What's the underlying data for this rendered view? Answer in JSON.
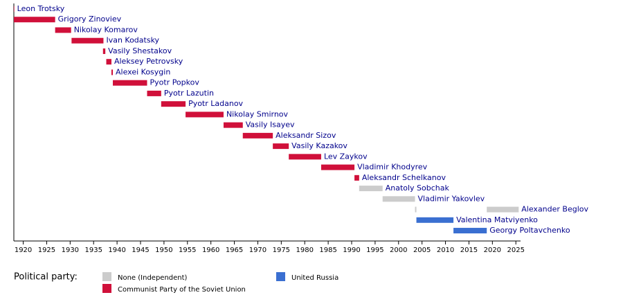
{
  "chart_data": {
    "type": "timeline",
    "xlim": [
      1918,
      2026
    ],
    "xticks": [
      1920,
      1925,
      1930,
      1935,
      1940,
      1945,
      1950,
      1955,
      1960,
      1965,
      1970,
      1975,
      1980,
      1985,
      1990,
      1995,
      2000,
      2005,
      2010,
      2015,
      2020,
      2025
    ],
    "legend_title": "Political party:",
    "parties": [
      {
        "name": "None (Independent)",
        "color": "#cccccc"
      },
      {
        "name": "Communist Party of the Soviet Union",
        "color": "#d0103a"
      },
      {
        "name": "United Russia",
        "color": "#3a6fd1"
      }
    ],
    "rows": [
      {
        "name": "Leon Trotsky",
        "color": "#d0103a",
        "spans": [
          [
            1918,
            1918.1
          ]
        ]
      },
      {
        "name": "Grigory Zinoviev",
        "color": "#d0103a",
        "spans": [
          [
            1918,
            1926.8
          ]
        ]
      },
      {
        "name": "Nikolay Komarov",
        "color": "#d0103a",
        "spans": [
          [
            1926.8,
            1930.2
          ]
        ]
      },
      {
        "name": "Ivan Kodatsky",
        "color": "#d0103a",
        "spans": [
          [
            1930.3,
            1937.1
          ]
        ]
      },
      {
        "name": "Vasily Shestakov",
        "color": "#d0103a",
        "spans": [
          [
            1937,
            1937.5
          ]
        ]
      },
      {
        "name": "Aleksey Petrovsky",
        "color": "#d0103a",
        "spans": [
          [
            1937.7,
            1938.8
          ]
        ]
      },
      {
        "name": "Alexei Kosygin",
        "color": "#d0103a",
        "spans": [
          [
            1938.8,
            1939.1
          ]
        ]
      },
      {
        "name": "Pyotr Popkov",
        "color": "#d0103a",
        "spans": [
          [
            1939.1,
            1946.4
          ]
        ]
      },
      {
        "name": "Pyotr Lazutin",
        "color": "#d0103a",
        "spans": [
          [
            1946.4,
            1949.4
          ]
        ]
      },
      {
        "name": "Pyotr Ladanov",
        "color": "#d0103a",
        "spans": [
          [
            1949.4,
            1954.6
          ]
        ]
      },
      {
        "name": "Nikolay Smirnov",
        "color": "#d0103a",
        "spans": [
          [
            1954.6,
            1962.7
          ]
        ]
      },
      {
        "name": "Vasily Isayev",
        "color": "#d0103a",
        "spans": [
          [
            1962.7,
            1966.8
          ]
        ]
      },
      {
        "name": "Aleksandr Sizov",
        "color": "#d0103a",
        "spans": [
          [
            1966.8,
            1973.2
          ]
        ]
      },
      {
        "name": "Vasily Kazakov",
        "color": "#d0103a",
        "spans": [
          [
            1973.2,
            1976.6
          ]
        ]
      },
      {
        "name": "Lev Zaykov",
        "color": "#d0103a",
        "spans": [
          [
            1976.6,
            1983.5
          ]
        ]
      },
      {
        "name": "Vladimir Khodyrev",
        "color": "#d0103a",
        "spans": [
          [
            1983.5,
            1990.6
          ]
        ]
      },
      {
        "name": "Aleksandr Schelkanov",
        "color": "#d0103a",
        "spans": [
          [
            1990.6,
            1991.6
          ]
        ]
      },
      {
        "name": "Anatoly Sobchak",
        "color": "#cccccc",
        "spans": [
          [
            1991.6,
            1996.6
          ]
        ]
      },
      {
        "name": "Vladimir Yakovlev",
        "color": "#cccccc",
        "spans": [
          [
            1996.6,
            2003.5
          ]
        ]
      },
      {
        "name": "Alexander Beglov",
        "color": "#cccccc",
        "spans": [
          [
            2003.5,
            2003.8
          ],
          [
            2018.8,
            2025.6
          ]
        ]
      },
      {
        "name": "Valentina Matviyenko",
        "color": "#3a6fd1",
        "spans": [
          [
            2003.8,
            2011.7
          ]
        ]
      },
      {
        "name": "Georgy Poltavchenko",
        "color": "#3a6fd1",
        "spans": [
          [
            2011.7,
            2018.8
          ]
        ]
      }
    ]
  }
}
